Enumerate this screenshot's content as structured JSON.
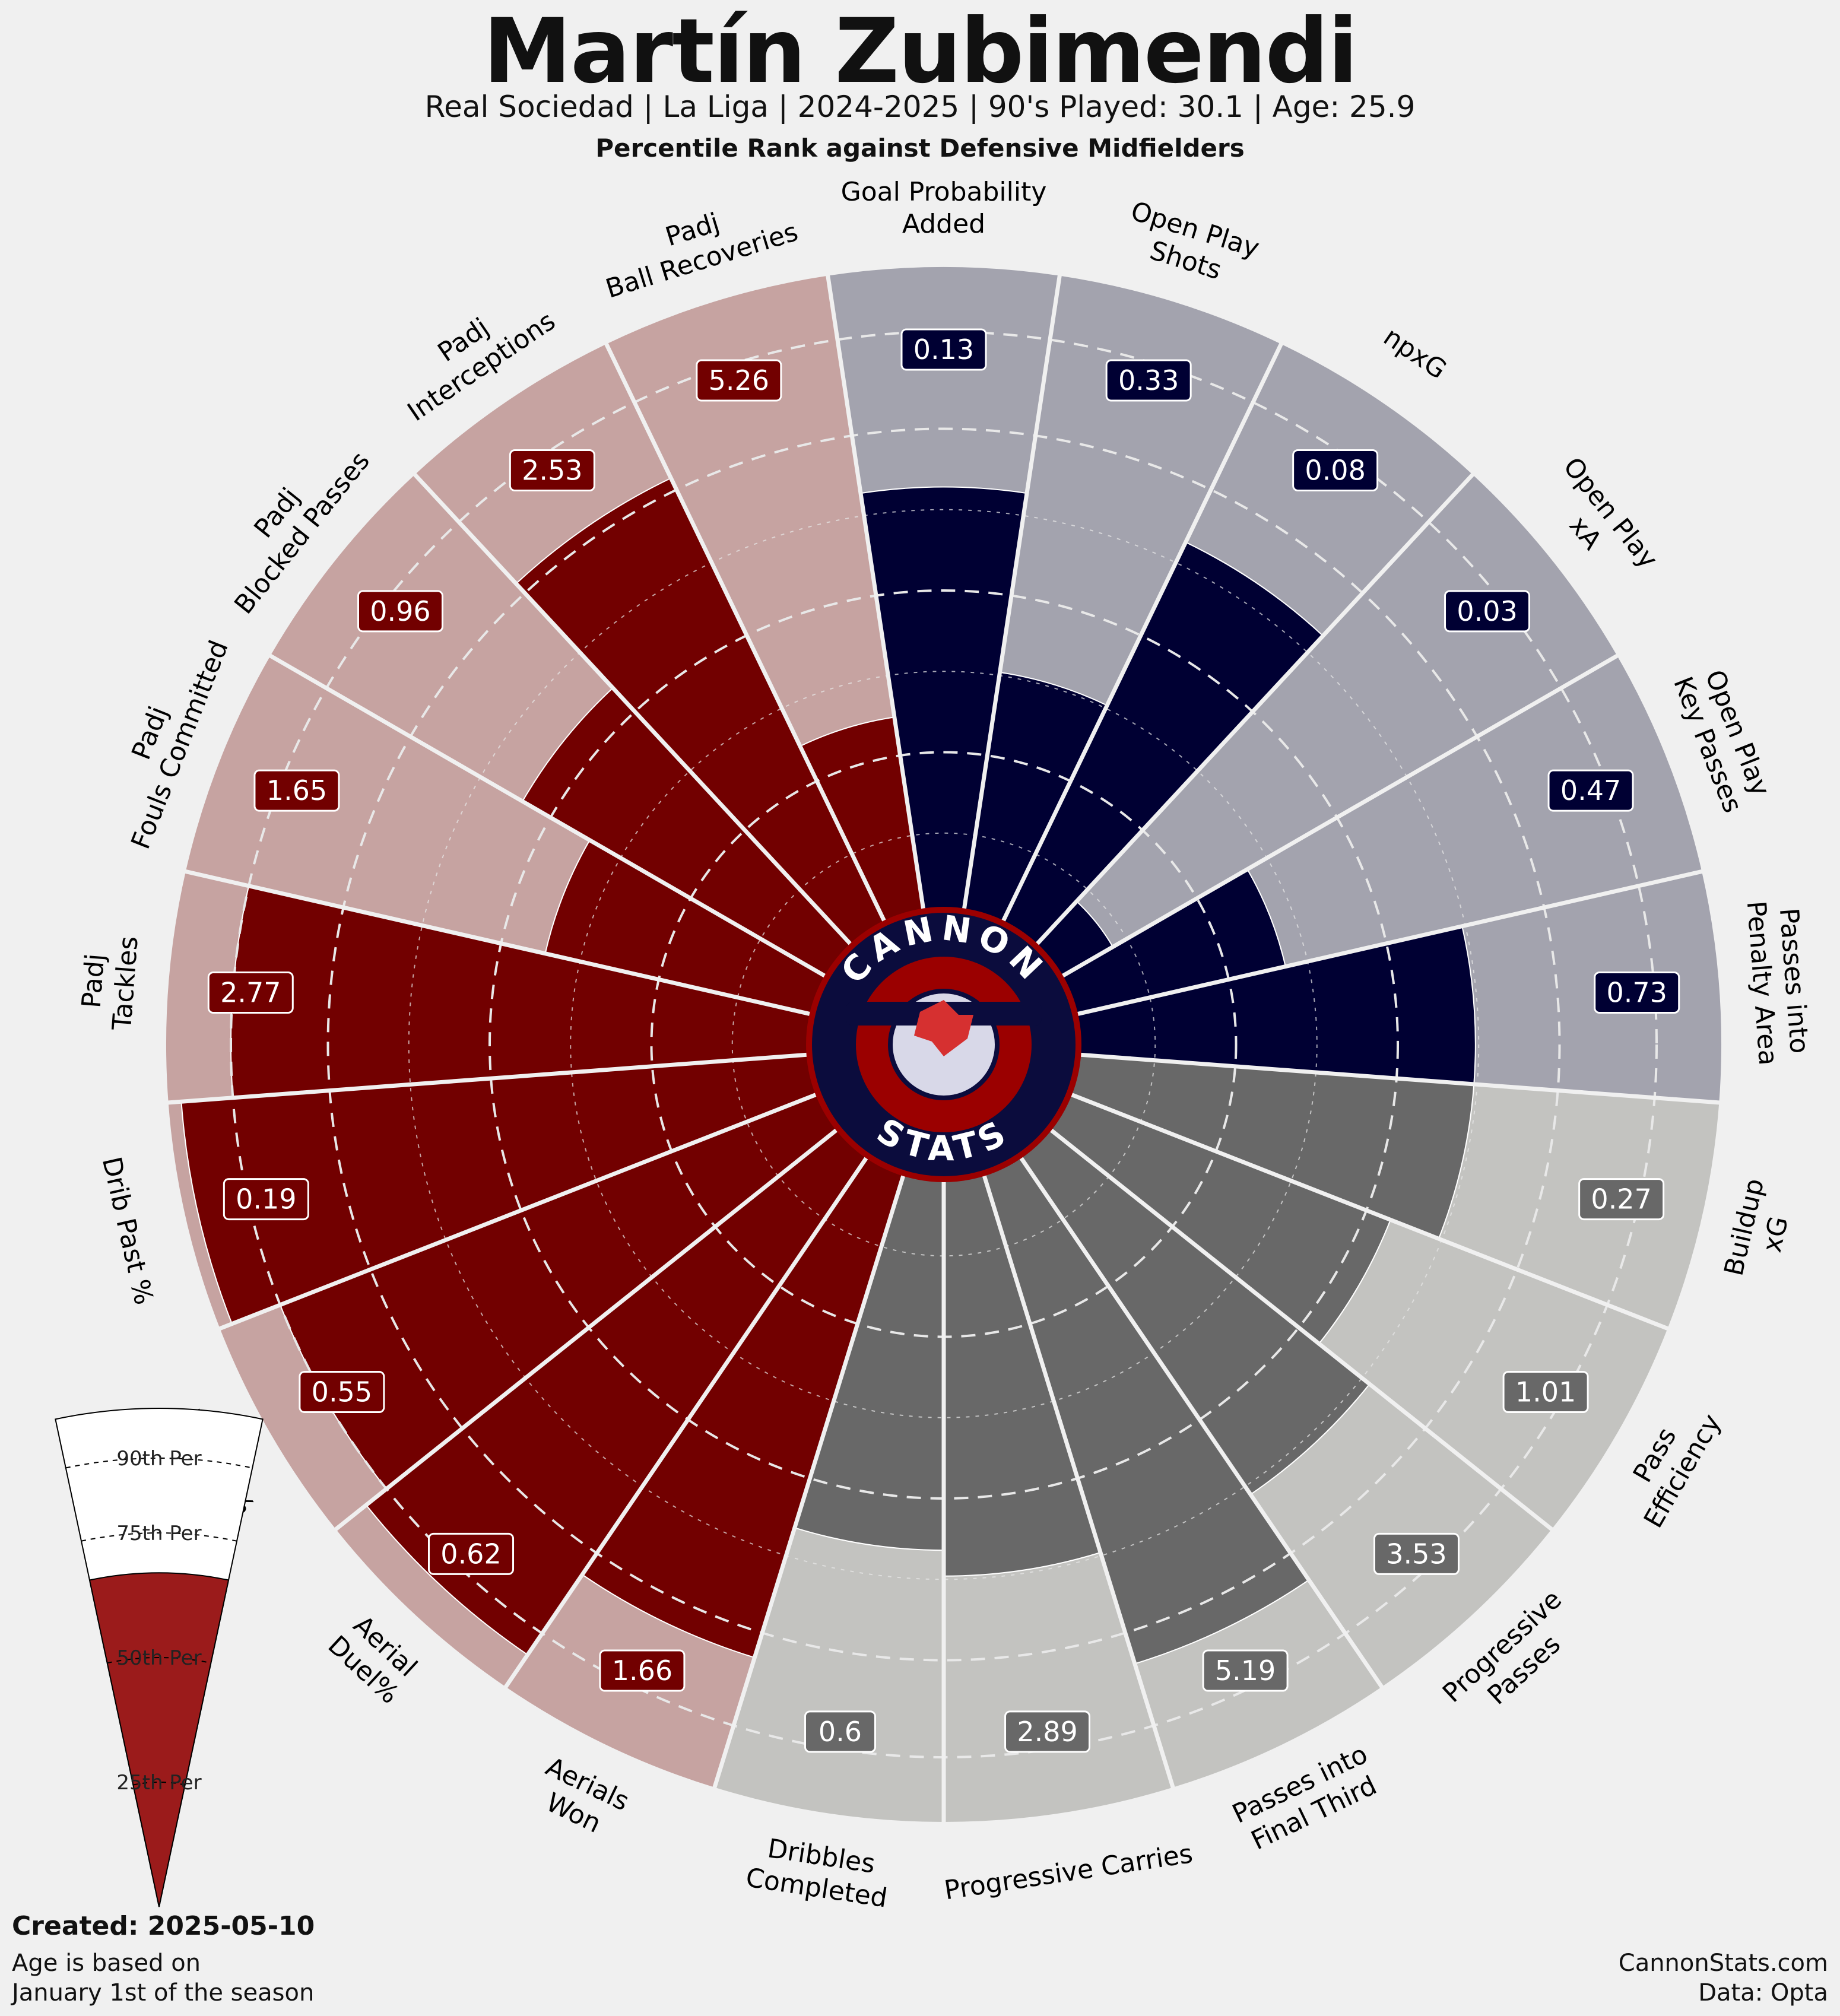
{
  "header": {
    "title": "Martín Zubimendi",
    "subtitle": "Real Sociedad  | La Liga | 2024-2025 | 90's Played: 30.1 | Age: 25.9",
    "comparison": "Percentile Rank against Defensive Midfielders"
  },
  "footer": {
    "created": "Created: 2025-05-10",
    "age_note": "Age is based on\nJanuary 1st of the season",
    "credits": "CannonStats.com\nData: Opta"
  },
  "logo": {
    "top_text": "CANNON",
    "bottom_text": "STATS"
  },
  "legend": {
    "labels": [
      "90th Per",
      "75th Per",
      "50th Per",
      "25th Per"
    ],
    "example_percentile": 67
  },
  "colors": {
    "background": "#f0f0f0",
    "attacking": "#000033",
    "attacking_light": "#a3a3ae",
    "possession": "#686868",
    "possession_light": "#c3c3c0",
    "defending": "#720000",
    "defending_light": "#c6a3a1",
    "logo_red": "#9b0000",
    "logo_navy": "#0b0c3d"
  },
  "chart_data": {
    "type": "pizza",
    "range": [
      0,
      100
    ],
    "reference_rings": [
      25,
      50,
      75,
      90
    ],
    "categories": [
      {
        "label": "Goal Probability\nAdded",
        "percentile": 66,
        "value": "0.13",
        "group": "attacking"
      },
      {
        "label": "Open Play\nShots",
        "percentile": 38,
        "value": "0.33",
        "group": "attacking"
      },
      {
        "label": "npxG",
        "percentile": 66,
        "value": "0.08",
        "group": "attacking"
      },
      {
        "label": "Open Play\nxA",
        "percentile": 10,
        "value": "0.03",
        "group": "attacking"
      },
      {
        "label": "Open Play\nKey Passes",
        "percentile": 34,
        "value": "0.47",
        "group": "attacking"
      },
      {
        "label": "Passes into\nPenalty Area",
        "percentile": 62,
        "value": "0.73",
        "group": "attacking"
      },
      {
        "label": "Buildup\nxG",
        "percentile": 62,
        "value": "0.27",
        "group": "possession"
      },
      {
        "label": "Pass\nEfficiency",
        "percentile": 54,
        "value": "1.01",
        "group": "possession"
      },
      {
        "label": "Progressive\nPasses",
        "percentile": 64,
        "value": "3.53",
        "group": "possession"
      },
      {
        "label": "Passes into\nFinal Third",
        "percentile": 80,
        "value": "5.19",
        "group": "possession"
      },
      {
        "label": "Progressive Carries",
        "percentile": 62,
        "value": "2.89",
        "group": "possession"
      },
      {
        "label": "Dribbles\nCompleted",
        "percentile": 58,
        "value": "0.6",
        "group": "possession"
      },
      {
        "label": "Aerials\nWon",
        "percentile": 79,
        "value": "1.66",
        "group": "defending"
      },
      {
        "label": "Aerial\nDuel%",
        "percentile": 94,
        "value": "0.62",
        "group": "defending"
      },
      {
        "label": "Tackle %",
        "percentile": 90,
        "value": "0.55",
        "group": "defending"
      },
      {
        "label": "Drib Past %",
        "percentile": 98,
        "value": "0.19",
        "group": "defending"
      },
      {
        "label": "Padj\nTackles",
        "percentile": 90,
        "value": "2.77",
        "group": "defending"
      },
      {
        "label": "Padj\nFouls Committed",
        "percentile": 43,
        "value": "1.65",
        "group": "defending"
      },
      {
        "label": "Padj\nBlocked Passes",
        "percentile": 55,
        "value": "0.96",
        "group": "defending"
      },
      {
        "label": "Padj\nInterceptions",
        "percentile": 77,
        "value": "2.53",
        "group": "defending"
      },
      {
        "label": "Padj\nBall Recoveries",
        "percentile": 31,
        "value": "5.26",
        "group": "defending"
      }
    ]
  }
}
